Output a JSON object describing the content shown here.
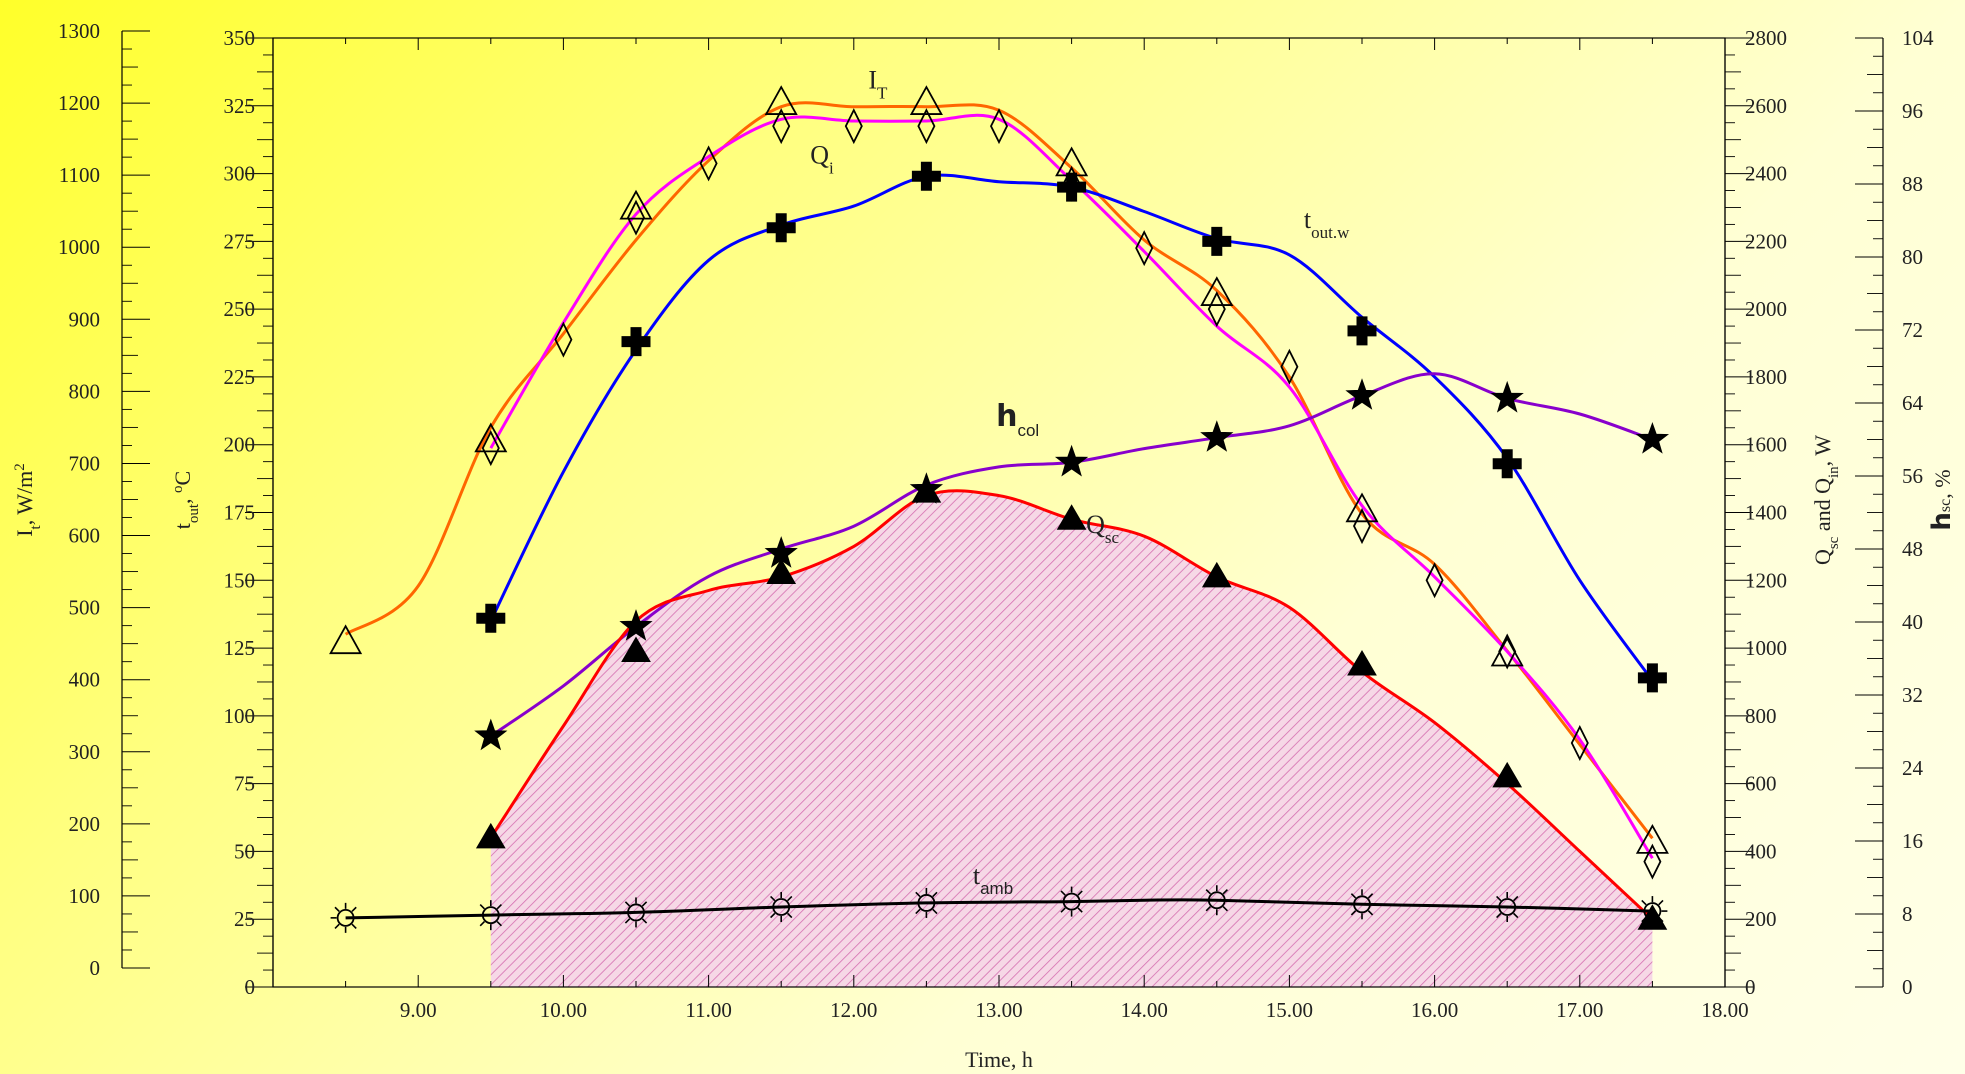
{
  "chart_data": {
    "type": "line",
    "xlabel": "Time, h",
    "xlim": [
      8.0,
      18.0
    ],
    "x_ticks": [
      "9.00",
      "10.00",
      "11.00",
      "12.00",
      "13.00",
      "14.00",
      "15.00",
      "16.00",
      "17.00",
      "18.00"
    ],
    "axes": {
      "it": {
        "label": "I",
        "sub": "t",
        "suffix": ", W/m",
        "sup": "2",
        "lim": [
          0,
          1300
        ],
        "ticks": [
          "0",
          "100",
          "200",
          "300",
          "400",
          "500",
          "600",
          "700",
          "800",
          "900",
          "1000",
          "1100",
          "1200",
          "1300"
        ]
      },
      "tout": {
        "label": "t",
        "sub": "out",
        "suffix": ", ",
        "sup": "o",
        "tail": "C",
        "lim": [
          0,
          350
        ],
        "ticks": [
          "0",
          "25",
          "50",
          "75",
          "100",
          "125",
          "150",
          "175",
          "200",
          "225",
          "250",
          "275",
          "300",
          "325",
          "350"
        ]
      },
      "q": {
        "label1": "Q",
        "sub1": "sc",
        "mid": " and Q",
        "sub2": "in",
        "suffix": ", W",
        "lim": [
          0,
          2800
        ],
        "ticks": [
          "0",
          "200",
          "400",
          "600",
          "800",
          "1000",
          "1200",
          "1400",
          "1600",
          "1800",
          "2000",
          "2200",
          "2400",
          "2600",
          "2800"
        ]
      },
      "eta": {
        "label": "h",
        "sub": "sc",
        "suffix": ", %",
        "lim": [
          0,
          104
        ],
        "ticks": [
          "0",
          "8",
          "16",
          "24",
          "32",
          "40",
          "48",
          "56",
          "64",
          "72",
          "80",
          "88",
          "96",
          "104"
        ]
      }
    },
    "series": [
      {
        "key": "IT",
        "axis": "it",
        "color": "#ff6600",
        "marker": "open-triangle",
        "curve_x": [
          8.5,
          9.0,
          9.5,
          10.0,
          10.5,
          11.0,
          11.5,
          12.0,
          12.5,
          13.0,
          13.5,
          14.0,
          14.5,
          15.0,
          15.5,
          16.0,
          16.5,
          17.0,
          17.5
        ],
        "curve_y": [
          463,
          530,
          750,
          880,
          1010,
          1120,
          1195,
          1195,
          1195,
          1190,
          1110,
          1010,
          940,
          820,
          630,
          560,
          440,
          310,
          180
        ],
        "marker_x": [
          8.5,
          9.5,
          10.5,
          11.5,
          12.5,
          13.5,
          14.5,
          15.5,
          16.5,
          17.5
        ],
        "marker_y": [
          452,
          732,
          1055,
          1200,
          1200,
          1115,
          935,
          635,
          435,
          175
        ]
      },
      {
        "key": "Qi",
        "axis": "q",
        "color": "#ff00ff",
        "marker": "open-diamond",
        "curve_x": [
          9.5,
          10.0,
          10.5,
          11.0,
          11.5,
          12.0,
          12.5,
          13.0,
          13.5,
          14.0,
          14.5,
          15.0,
          15.5,
          16.0,
          16.5,
          17.0,
          17.5
        ],
        "curve_y": [
          1590,
          1960,
          2280,
          2450,
          2560,
          2555,
          2555,
          2560,
          2380,
          2170,
          1950,
          1770,
          1420,
          1210,
          990,
          730,
          380
        ],
        "marker_x": [
          9.5,
          10.0,
          10.5,
          11.0,
          11.5,
          12.0,
          12.5,
          13.0,
          13.5,
          14.0,
          14.5,
          15.0,
          15.5,
          16.0,
          16.5,
          17.0,
          17.5
        ],
        "marker_y": [
          1590,
          1910,
          2270,
          2430,
          2540,
          2540,
          2540,
          2540,
          2370,
          2180,
          2000,
          1830,
          1360,
          1200,
          990,
          720,
          370
        ]
      },
      {
        "key": "tout",
        "axis": "tout",
        "color": "#0000ff",
        "marker": "cross",
        "curve_x": [
          9.5,
          10.0,
          10.5,
          11.0,
          11.5,
          12.0,
          12.5,
          13.0,
          13.5,
          14.0,
          14.5,
          15.0,
          15.5,
          16.0,
          16.5,
          17.0,
          17.5
        ],
        "curve_y": [
          135,
          190,
          235,
          268,
          281,
          288,
          299,
          297,
          295,
          286,
          276,
          270,
          247,
          225,
          195,
          150,
          113
        ],
        "marker_x": [
          9.5,
          10.5,
          11.5,
          12.5,
          13.5,
          14.5,
          15.5,
          16.5,
          17.5
        ],
        "marker_y": [
          136,
          238,
          280,
          299,
          295,
          275,
          242,
          193,
          114
        ]
      },
      {
        "key": "eta",
        "axis": "eta",
        "color": "#8800cc",
        "marker": "filled-star",
        "curve_x": [
          9.5,
          10.0,
          10.5,
          11.0,
          11.5,
          12.0,
          12.5,
          13.0,
          13.5,
          14.0,
          14.5,
          15.0,
          15.5,
          16.0,
          16.5,
          17.0,
          17.5
        ],
        "curve_y": [
          27.5,
          33,
          39.5,
          45,
          48,
          50.5,
          55,
          57,
          57.5,
          59,
          60.2,
          61.5,
          64.8,
          67.2,
          64.5,
          62.8,
          60
        ],
        "marker_x": [
          9.5,
          10.5,
          11.5,
          12.5,
          13.5,
          14.5,
          15.5,
          16.5,
          17.5
        ],
        "marker_y": [
          27.5,
          39.5,
          47.5,
          54.5,
          57.5,
          60.2,
          64.8,
          64.5,
          60
        ]
      },
      {
        "key": "Qsc",
        "axis": "q",
        "color": "#ff0000",
        "marker": "filled-triangle",
        "curve_x": [
          9.5,
          10.0,
          10.5,
          11.0,
          11.5,
          12.0,
          12.5,
          13.0,
          13.5,
          14.0,
          14.5,
          15.0,
          15.5,
          16.0,
          16.5,
          17.0,
          17.5
        ],
        "curve_y": [
          440,
          770,
          1080,
          1170,
          1210,
          1300,
          1450,
          1450,
          1380,
          1330,
          1210,
          1120,
          930,
          780,
          600,
          400,
          200
        ],
        "marker_x": [
          9.5,
          10.5,
          11.5,
          12.5,
          13.5,
          14.5,
          15.5,
          16.5,
          17.5
        ],
        "marker_y": [
          440,
          990,
          1220,
          1460,
          1380,
          1210,
          950,
          620,
          200
        ]
      },
      {
        "key": "tamb",
        "axis": "tout",
        "color": "#000000",
        "marker": "open-sun",
        "curve_x": [
          8.5,
          9.5,
          10.5,
          11.5,
          12.5,
          13.5,
          14.0,
          14.5,
          15.5,
          16.5,
          17.5
        ],
        "curve_y": [
          25.5,
          26.5,
          27.5,
          29.5,
          31,
          31.5,
          32,
          32,
          30.5,
          29.5,
          28
        ],
        "marker_x": [
          8.5,
          9.5,
          10.5,
          11.5,
          12.5,
          13.5,
          14.5,
          15.5,
          16.5,
          17.5
        ],
        "marker_y": [
          25.5,
          26.5,
          27.5,
          29.5,
          31,
          31.5,
          32,
          30.5,
          29.5,
          28
        ]
      }
    ],
    "annotations": {
      "IT": {
        "main": "I",
        "sub": "T",
        "x": 12.1,
        "y": 1220,
        "axis": "it"
      },
      "Qi": {
        "main": "Q",
        "sub": "i",
        "x": 11.7,
        "y": 2430,
        "axis": "q"
      },
      "tout": {
        "main": "t",
        "sub": "out.w",
        "x": 15.1,
        "y": 280,
        "axis": "tout"
      },
      "eta": {
        "main": "h",
        "sub": "col",
        "x": 12.98,
        "y": 61.5,
        "axis": "eta"
      },
      "Qsc": {
        "main": "Q",
        "sub": "sc",
        "x": 13.6,
        "y": 1340,
        "axis": "q"
      },
      "tamb": {
        "main": "t",
        "sub": "amb",
        "x": 12.82,
        "y": 38,
        "axis": "tout"
      }
    },
    "grid": false,
    "shaded_area_under": "Qsc"
  }
}
